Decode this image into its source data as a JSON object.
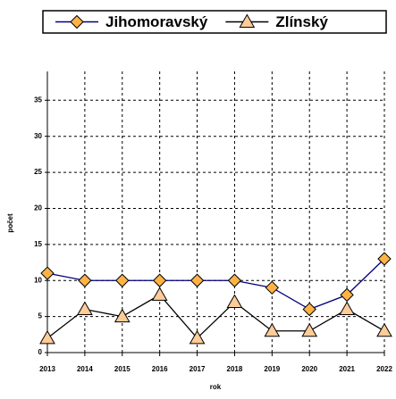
{
  "chart_data": {
    "type": "line",
    "categories": [
      "2013",
      "2014",
      "2015",
      "2016",
      "2017",
      "2018",
      "2019",
      "2020",
      "2021",
      "2022"
    ],
    "series": [
      {
        "name": "Jihomoravský",
        "color": "#000080",
        "marker": "diamond",
        "marker_color": "#ffb347",
        "values": [
          11,
          10,
          10,
          10,
          10,
          10,
          9,
          6,
          8,
          13
        ]
      },
      {
        "name": "Zlínský",
        "color": "#000000",
        "marker": "triangle",
        "marker_color": "#ffcc99",
        "values": [
          2,
          6,
          5,
          8,
          2,
          7,
          3,
          3,
          6,
          3
        ]
      }
    ],
    "ylim": [
      0,
      39
    ],
    "yticks": [
      0,
      5,
      10,
      15,
      20,
      25,
      30,
      35
    ],
    "ylabel": "počet",
    "xlabel": "rok",
    "grid": true,
    "legend": "top"
  }
}
